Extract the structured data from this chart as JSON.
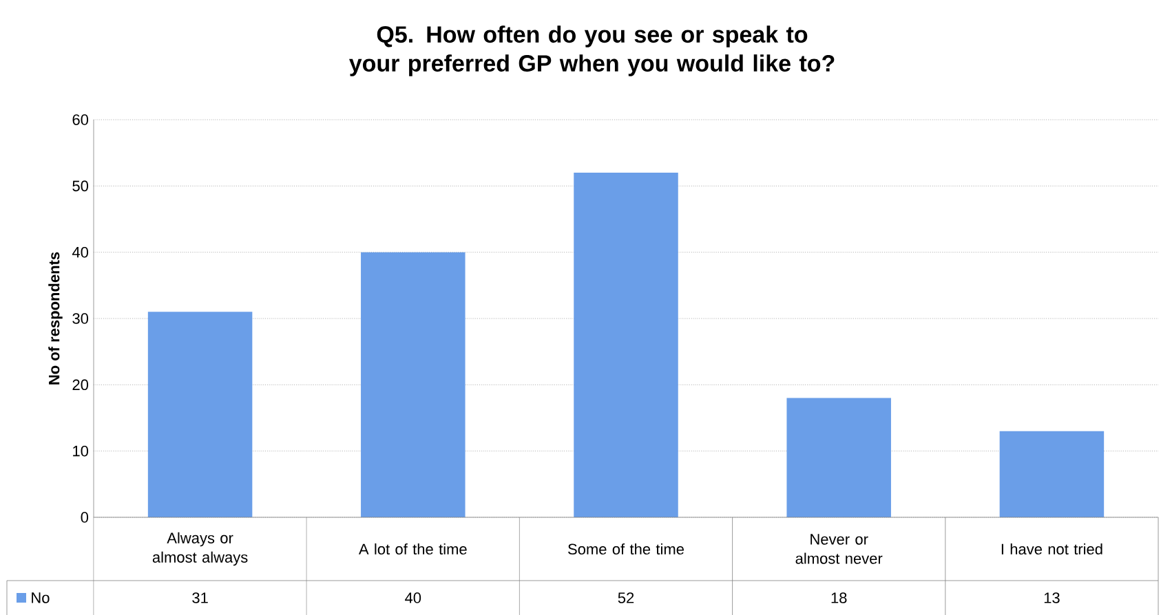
{
  "chart_data": {
    "type": "bar",
    "title": "Q5. How often do you see or speak to your preferred GP when you would like to?",
    "ylabel": "No of respondents",
    "categories": [
      "Always or almost always",
      "A lot of the time",
      "Some of the time",
      "Never or almost never",
      "I have not tried"
    ],
    "series": [
      {
        "name": "No",
        "color": "#6a9ee8",
        "values": [
          31,
          40,
          52,
          18,
          13
        ]
      }
    ],
    "ylim": [
      0,
      60
    ],
    "yticks": [
      0,
      10,
      20,
      30,
      40,
      50,
      60
    ],
    "grid": "y",
    "data_labels": true,
    "legend": "bottom left"
  }
}
